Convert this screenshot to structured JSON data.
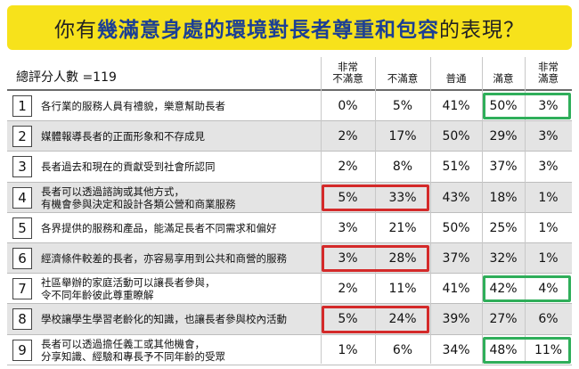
{
  "title": {
    "pre": "你有",
    "highlight": "幾滿意身處的環境對長者尊重和包容",
    "post": "的表現？"
  },
  "table": {
    "respondents_label": "總評分人數 =119",
    "columns": [
      "非常\n不滿意",
      "不滿意",
      "普通",
      "滿意",
      "非常\n滿意"
    ]
  },
  "chart_data": {
    "type": "table",
    "title": "你有幾滿意身處的環境對長者尊重和包容的表現？",
    "respondents": 119,
    "columns": [
      "非常不滿意",
      "不滿意",
      "普通",
      "滿意",
      "非常滿意"
    ],
    "rows": [
      {
        "num": "1",
        "statement": "各行業的服務人員有禮貌，樂意幫助長者",
        "values": [
          "0%",
          "5%",
          "41%",
          "50%",
          "3%"
        ]
      },
      {
        "num": "2",
        "statement": "媒體報導長者的正面形象和不存成見",
        "values": [
          "2%",
          "17%",
          "50%",
          "29%",
          "3%"
        ]
      },
      {
        "num": "3",
        "statement": "長者過去和現在的貢獻受到社會所認同",
        "values": [
          "2%",
          "8%",
          "51%",
          "37%",
          "3%"
        ]
      },
      {
        "num": "4",
        "statement": "長者可以透過諮詢或其他方式，\n有機會參與決定和設計各類公營和商業服務",
        "values": [
          "5%",
          "33%",
          "43%",
          "18%",
          "1%"
        ]
      },
      {
        "num": "5",
        "statement": "各界提供的服務和產品，能滿足長者不同需求和偏好",
        "values": [
          "3%",
          "21%",
          "50%",
          "25%",
          "1%"
        ]
      },
      {
        "num": "6",
        "statement": "經濟條件較差的長者，亦容易享用到公共和商營的服務",
        "values": [
          "3%",
          "28%",
          "37%",
          "32%",
          "1%"
        ]
      },
      {
        "num": "7",
        "statement": "社區舉辦的家庭活動可以讓長者參與，\n令不同年齡彼此尊重瞭解",
        "values": [
          "2%",
          "11%",
          "41%",
          "42%",
          "4%"
        ]
      },
      {
        "num": "8",
        "statement": "學校讓學生學習老齡化的知識，也讓長者參與校內活動",
        "values": [
          "5%",
          "24%",
          "39%",
          "27%",
          "6%"
        ]
      },
      {
        "num": "9",
        "statement": "長者可以透過擔任義工或其他機會，\n分享知識、經驗和專長予不同年齡的受眾",
        "values": [
          "1%",
          "6%",
          "34%",
          "48%",
          "11%"
        ]
      }
    ],
    "highlights_red": [
      [
        4,
        0
      ],
      [
        4,
        1
      ],
      [
        6,
        0
      ],
      [
        6,
        1
      ],
      [
        8,
        0
      ],
      [
        8,
        1
      ]
    ],
    "highlights_green": [
      [
        1,
        3
      ],
      [
        1,
        4
      ],
      [
        7,
        3
      ],
      [
        7,
        4
      ],
      [
        9,
        3
      ],
      [
        9,
        4
      ]
    ]
  },
  "colors": {
    "title_background": "#f7e21b",
    "title_highlight": "#1c3f94",
    "highlight_red": "#d42a2a",
    "highlight_green": "#2fae5a",
    "row_shade": "#e4e4e4"
  }
}
